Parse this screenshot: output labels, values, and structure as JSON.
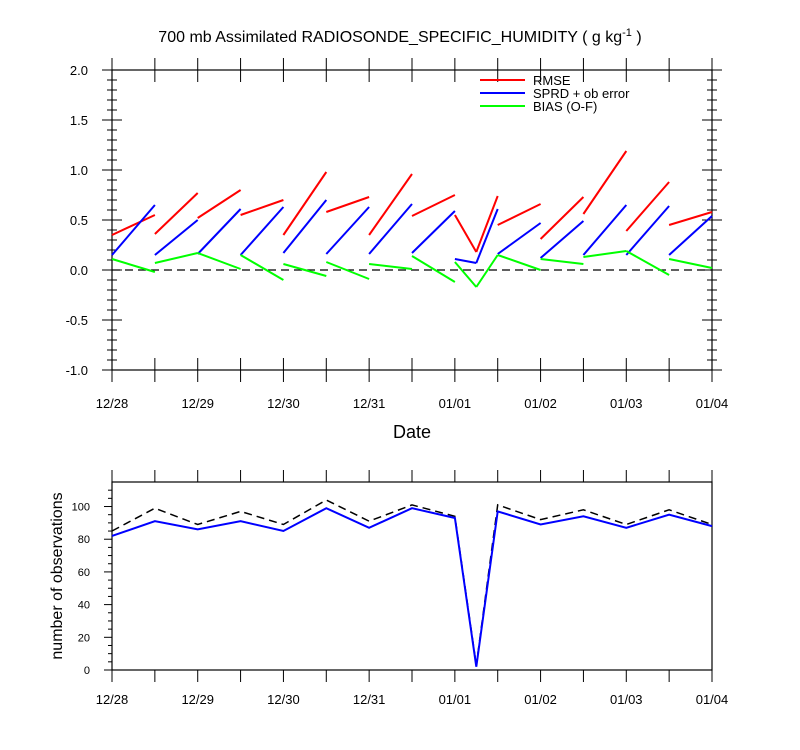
{
  "title": "700 mb Assimilated RADIOSONDE_SPECIFIC_HUMIDITY ( g kg",
  "title_sup": "-1",
  "title_end": " )",
  "colors": {
    "rmse": "#ff0000",
    "sprd": "#0000ff",
    "bias": "#00ff00",
    "axis": "#000000"
  },
  "chart_data": [
    {
      "type": "line",
      "xlabel": "Date",
      "ylabel": "",
      "xlim": [
        0,
        7
      ],
      "ylim": [
        -1.0,
        2.0
      ],
      "grid": false,
      "legend_position": "top-right",
      "x_tick_labels": [
        "12/28",
        "12/29",
        "12/30",
        "12/31",
        "01/01",
        "01/02",
        "01/03",
        "01/04"
      ],
      "y_tick_labels": [
        "-1.0",
        "-0.5",
        "0.0",
        "0.5",
        "1.0",
        "1.5",
        "2.0"
      ],
      "reference_line": {
        "y": 0.0,
        "style": "dashed"
      },
      "series": [
        {
          "name": "RMSE",
          "color_key": "rmse",
          "segments": [
            [
              [
                0,
                0.35
              ],
              [
                0.5,
                0.55
              ]
            ],
            [
              [
                0.5,
                0.36
              ],
              [
                1.0,
                0.77
              ]
            ],
            [
              [
                1.0,
                0.52
              ],
              [
                1.5,
                0.8
              ]
            ],
            [
              [
                1.5,
                0.55
              ],
              [
                2.0,
                0.7
              ]
            ],
            [
              [
                2.0,
                0.35
              ],
              [
                2.5,
                0.98
              ]
            ],
            [
              [
                2.5,
                0.58
              ],
              [
                3.0,
                0.73
              ]
            ],
            [
              [
                3.0,
                0.35
              ],
              [
                3.5,
                0.96
              ]
            ],
            [
              [
                3.5,
                0.54
              ],
              [
                4.0,
                0.75
              ]
            ],
            [
              [
                4.0,
                0.55
              ],
              [
                4.25,
                0.18
              ]
            ],
            [
              [
                4.25,
                0.18
              ],
              [
                4.5,
                0.74
              ]
            ],
            [
              [
                4.5,
                0.45
              ],
              [
                5.0,
                0.66
              ]
            ],
            [
              [
                5.0,
                0.31
              ],
              [
                5.5,
                0.73
              ]
            ],
            [
              [
                5.5,
                0.56
              ],
              [
                6.0,
                1.19
              ]
            ],
            [
              [
                6.0,
                0.39
              ],
              [
                6.5,
                0.88
              ]
            ],
            [
              [
                6.5,
                0.45
              ],
              [
                7.0,
                0.58
              ]
            ]
          ]
        },
        {
          "name": "SPRD + ob error",
          "color_key": "sprd",
          "segments": [
            [
              [
                0,
                0.15
              ],
              [
                0.5,
                0.65
              ]
            ],
            [
              [
                0.5,
                0.15
              ],
              [
                1.0,
                0.5
              ]
            ],
            [
              [
                1.0,
                0.16
              ],
              [
                1.5,
                0.61
              ]
            ],
            [
              [
                1.5,
                0.15
              ],
              [
                2.0,
                0.63
              ]
            ],
            [
              [
                2.0,
                0.17
              ],
              [
                2.5,
                0.7
              ]
            ],
            [
              [
                2.5,
                0.16
              ],
              [
                3.0,
                0.63
              ]
            ],
            [
              [
                3.0,
                0.16
              ],
              [
                3.5,
                0.66
              ]
            ],
            [
              [
                3.5,
                0.17
              ],
              [
                4.0,
                0.59
              ]
            ],
            [
              [
                4.0,
                0.11
              ],
              [
                4.25,
                0.07
              ]
            ],
            [
              [
                4.25,
                0.07
              ],
              [
                4.5,
                0.61
              ]
            ],
            [
              [
                4.5,
                0.16
              ],
              [
                5.0,
                0.47
              ]
            ],
            [
              [
                5.0,
                0.12
              ],
              [
                5.5,
                0.49
              ]
            ],
            [
              [
                5.5,
                0.15
              ],
              [
                6.0,
                0.65
              ]
            ],
            [
              [
                6.0,
                0.15
              ],
              [
                6.5,
                0.64
              ]
            ],
            [
              [
                6.5,
                0.15
              ],
              [
                7.0,
                0.54
              ]
            ]
          ]
        },
        {
          "name": "BIAS (O-F)",
          "color_key": "bias",
          "segments": [
            [
              [
                0,
                0.11
              ],
              [
                0.5,
                -0.02
              ]
            ],
            [
              [
                0.5,
                0.07
              ],
              [
                1.0,
                0.17
              ]
            ],
            [
              [
                1.0,
                0.17
              ],
              [
                1.5,
                0.01
              ]
            ],
            [
              [
                1.5,
                0.15
              ],
              [
                2.0,
                -0.1
              ]
            ],
            [
              [
                2.0,
                0.06
              ],
              [
                2.5,
                -0.06
              ]
            ],
            [
              [
                2.5,
                0.08
              ],
              [
                3.0,
                -0.09
              ]
            ],
            [
              [
                3.0,
                0.06
              ],
              [
                3.5,
                0.01
              ]
            ],
            [
              [
                3.5,
                0.14
              ],
              [
                4.0,
                -0.12
              ]
            ],
            [
              [
                4.0,
                0.08
              ],
              [
                4.25,
                -0.17
              ]
            ],
            [
              [
                4.25,
                -0.17
              ],
              [
                4.5,
                0.15
              ]
            ],
            [
              [
                4.5,
                0.15
              ],
              [
                5.0,
                0.0
              ]
            ],
            [
              [
                5.0,
                0.11
              ],
              [
                5.5,
                0.06
              ]
            ],
            [
              [
                5.5,
                0.13
              ],
              [
                6.0,
                0.19
              ]
            ],
            [
              [
                6.0,
                0.19
              ],
              [
                6.5,
                -0.05
              ]
            ],
            [
              [
                6.5,
                0.11
              ],
              [
                7.0,
                0.02
              ]
            ]
          ]
        }
      ]
    },
    {
      "type": "line",
      "xlabel": "",
      "ylabel": "number of observations",
      "xlim": [
        0,
        7
      ],
      "ylim": [
        0,
        115
      ],
      "grid": false,
      "x_tick_labels": [
        "12/28",
        "12/29",
        "12/30",
        "12/31",
        "01/01",
        "01/02",
        "01/03",
        "01/04"
      ],
      "y_ticks": [
        0,
        20,
        40,
        60,
        80,
        100
      ],
      "x": [
        0,
        0.5,
        1.0,
        1.5,
        2.0,
        2.5,
        3.0,
        3.5,
        4.0,
        4.25,
        4.5,
        5.0,
        5.5,
        6.0,
        6.5,
        7.0
      ],
      "series": [
        {
          "style": "dashed",
          "color_key": "axis",
          "values": [
            85,
            99,
            89,
            97,
            89,
            104,
            91,
            101,
            94,
            3,
            101,
            92,
            98,
            89,
            98,
            89
          ]
        },
        {
          "style": "solid",
          "color_key": "sprd",
          "values": [
            82,
            91,
            86,
            91,
            85,
            99,
            87,
            99,
            93,
            2,
            97,
            89,
            94,
            87,
            95,
            88
          ]
        }
      ]
    }
  ]
}
